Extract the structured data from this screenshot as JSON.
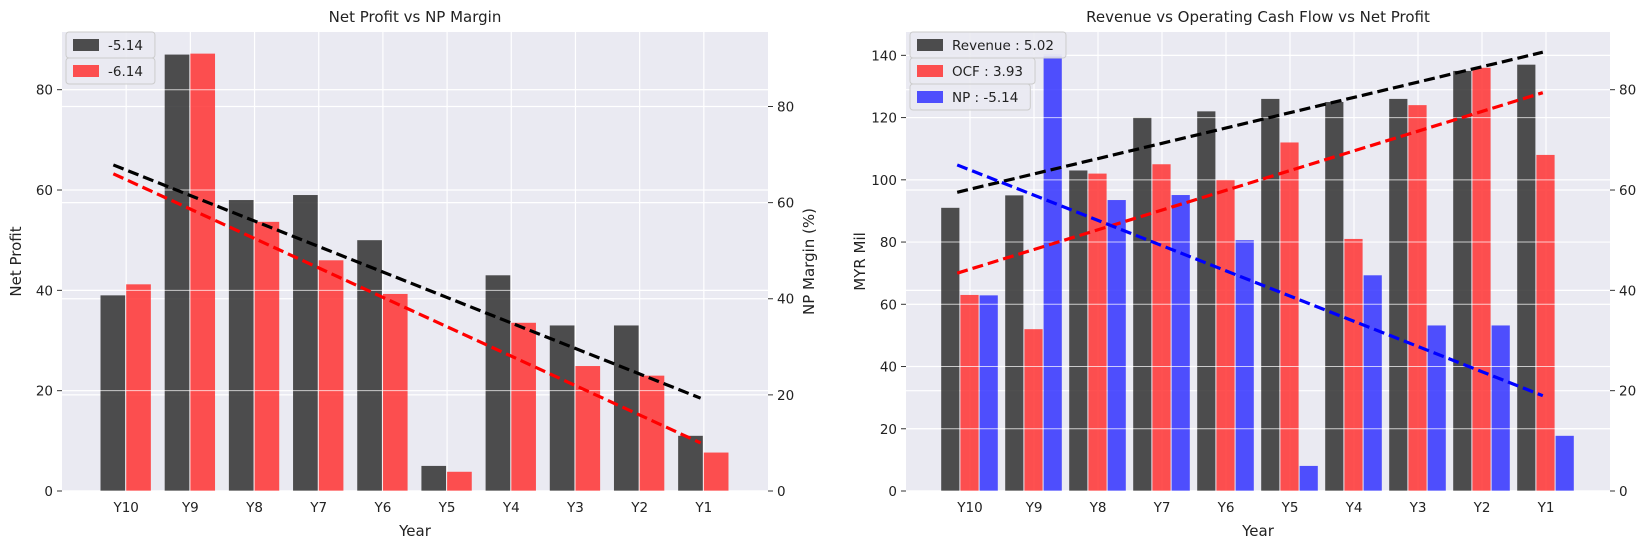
{
  "chart_data": [
    {
      "type": "bar",
      "title": "Net Profit vs NP Margin",
      "xlabel": "Year",
      "ylabel": "Net Profit",
      "y2label": "NP Margin (%)",
      "categories": [
        "Y10",
        "Y9",
        "Y8",
        "Y7",
        "Y6",
        "Y5",
        "Y4",
        "Y3",
        "Y2",
        "Y1"
      ],
      "ylim": [
        0,
        91.5
      ],
      "y2lim": [
        0,
        95.5
      ],
      "yticks": [
        0,
        20,
        40,
        60,
        80
      ],
      "y2ticks": [
        0,
        20,
        40,
        60,
        80
      ],
      "grid": true,
      "legend_position": "top-left",
      "series": [
        {
          "name": "-5.14",
          "axis": "left",
          "color": "#303030",
          "values": [
            39,
            87,
            58,
            59,
            50,
            5,
            43,
            33,
            33,
            11
          ],
          "trend": {
            "start": 65,
            "end": 18.5
          }
        },
        {
          "name": "-6.14",
          "axis": "right",
          "color": "#ff3333",
          "values": [
            43,
            91,
            56,
            48,
            41,
            4,
            35,
            26,
            24,
            8
          ],
          "trend": {
            "start": 66,
            "end": 10
          }
        }
      ]
    },
    {
      "type": "bar",
      "title": "Revenue vs Operating Cash Flow vs Net Profit",
      "xlabel": "Year",
      "ylabel": "MYR Mil",
      "y2label": "",
      "categories": [
        "Y10",
        "Y9",
        "Y8",
        "Y7",
        "Y6",
        "Y5",
        "Y4",
        "Y3",
        "Y2",
        "Y1"
      ],
      "ylim": [
        0,
        147.5
      ],
      "y2lim": [
        0,
        91.5
      ],
      "yticks": [
        0,
        20,
        40,
        60,
        80,
        100,
        120,
        140
      ],
      "y2ticks": [
        0,
        20,
        40,
        60,
        80
      ],
      "grid": true,
      "legend_position": "top-left",
      "series": [
        {
          "name": "Revenue : 5.02",
          "axis": "left",
          "color": "#303030",
          "values": [
            91,
            95,
            103,
            120,
            122,
            126,
            125,
            126,
            135,
            137
          ],
          "trend": {
            "start": 96,
            "end": 141
          }
        },
        {
          "name": "OCF : 3.93",
          "axis": "left",
          "color": "#ff3333",
          "values": [
            63,
            52,
            102,
            105,
            100,
            112,
            81,
            124,
            136,
            108
          ],
          "trend": {
            "start": 70,
            "end": 128
          }
        },
        {
          "name": "NP : -5.14",
          "axis": "right",
          "color": "#3333ff",
          "values": [
            39,
            87,
            58,
            59,
            50,
            5,
            43,
            33,
            33,
            11
          ],
          "trend": {
            "start": 65,
            "end": 19
          }
        }
      ]
    }
  ]
}
